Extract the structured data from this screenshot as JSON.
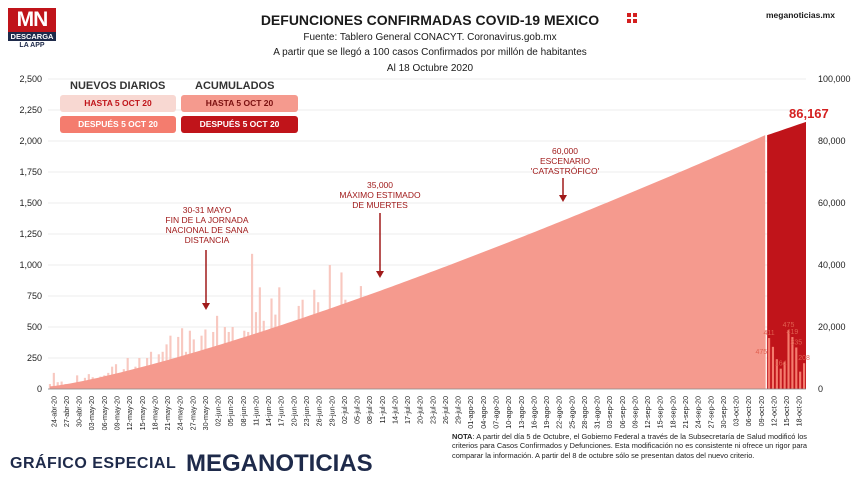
{
  "header": {
    "title": "DEFUNCIONES CONFIRMADAS COVID-19 MEXICO",
    "source": "Fuente: Tablero General CONACYT. Coronavirus.gob.mx",
    "subtitle": "A partir que se llegó a 100 casos Confirmados por millón de habitantes",
    "date": "Al 18 Octubre 2020",
    "site": "meganoticias.mx"
  },
  "logo": {
    "mark": "MN",
    "line1": "DESCARGA",
    "line2": "LA APP"
  },
  "legend": {
    "daily_head": "NUEVOS DIARIOS",
    "cum_head": "ACUMULADOS",
    "daily_before": "HASTA 5 OCT 20",
    "daily_after": "DESPUÉS 5 OCT 20",
    "cum_before": "HASTA 5 OCT 20",
    "cum_after": "DESPUÉS 5 OCT 20"
  },
  "annotations": [
    {
      "text": "30-31 MAYO\nFIN DE LA JORNADA\nNACIONAL DE SANA\nDISTANCIA"
    },
    {
      "text": "35,000\nMÁXIMO ESTIMADO\nDE MUERTES"
    },
    {
      "text": "60,000\nESCENARIO\n'CATASTRÓFICO'"
    }
  ],
  "footer": {
    "label": "GRÁFICO ESPECIAL",
    "brand": "MEGANOTICIAS"
  },
  "note": {
    "bold": "NOTA",
    "text": ": A partir del día 5 de Octubre, el Gobierno Federal a través de la Subsecretaría de Salud modificó los criterios para Casos Confirmados y Defunciones. Esta modificación no es consistente ni ofrece un rigor para comparar la información. A partir del 8 de octubre sólo se presentan datos del nuevo criterio."
  },
  "colors": {
    "daily_before": "#f8c8c0",
    "daily_after": "#f47c6e",
    "cum_before": "#f59a8e",
    "cum_after": "#c0141a",
    "brand": "#c0141a",
    "navy": "#1e2a4a"
  },
  "chart_data": {
    "type": "bar",
    "title": "DEFUNCIONES CONFIRMADAS COVID-19 MEXICO",
    "xlabel": "",
    "ylabel": "",
    "ylim": [
      0,
      2500
    ],
    "y2lim": [
      0,
      100000
    ],
    "y_ticks": [
      "0",
      "250",
      "500",
      "750",
      "1,000",
      "1,250",
      "1,500",
      "1,750",
      "2,000",
      "2,250",
      "2,500"
    ],
    "y2_ticks": [
      "0",
      "20,000",
      "40,000",
      "60,000",
      "80,000",
      "100,000"
    ],
    "x_tick_labels": [
      "24-abr-20",
      "27-abr-20",
      "30-abr-20",
      "03-may-20",
      "06-may-20",
      "09-may-20",
      "12-may-20",
      "15-may-20",
      "18-may-20",
      "21-may-20",
      "24-may-20",
      "27-may-20",
      "30-may-20",
      "02-jun-20",
      "05-jun-20",
      "08-jun-20",
      "11-jun-20",
      "14-jun-20",
      "17-jun-20",
      "20-jun-20",
      "23-jun-20",
      "26-jun-20",
      "29-jun-20",
      "02-jul-20",
      "05-jul-20",
      "08-jul-20",
      "11-jul-20",
      "14-jul-20",
      "17-jul-20",
      "20-jul-20",
      "23-jul-20",
      "26-jul-20",
      "29-jul-20",
      "01-ago-20",
      "04-ago-20",
      "07-ago-20",
      "10-ago-20",
      "13-ago-20",
      "16-ago-20",
      "19-ago-20",
      "22-ago-20",
      "25-ago-20",
      "28-ago-20",
      "31-ago-20",
      "03-sep-20",
      "06-sep-20",
      "09-sep-20",
      "12-sep-20",
      "15-sep-20",
      "18-sep-20",
      "21-sep-20",
      "24-sep-20",
      "27-sep-20",
      "30-sep-20",
      "03-oct-20",
      "06-oct-20",
      "09-oct-20",
      "12-oct-20",
      "15-oct-20",
      "18-oct-20"
    ],
    "series": [
      {
        "name": "NUEVOS DIARIOS HASTA 5 OCT 20",
        "axis": "left",
        "values": [
          40,
          130,
          55,
          60,
          40,
          35,
          30,
          110,
          40,
          90,
          120,
          95,
          80,
          100,
          110,
          130,
          180,
          200,
          130,
          160,
          250,
          110,
          180,
          250,
          120,
          250,
          300,
          150,
          280,
          300,
          360,
          430,
          160,
          420,
          490,
          300,
          470,
          400,
          190,
          430,
          480,
          270,
          460,
          590,
          350,
          500,
          460,
          500,
          290,
          360,
          470,
          460,
          1090,
          620,
          820,
          550,
          470,
          730,
          600,
          820,
          440,
          390,
          470,
          480,
          670,
          720,
          330,
          500,
          800,
          700,
          560,
          450,
          1000,
          550,
          480,
          940,
          720,
          500,
          330,
          630,
          830,
          700,
          660,
          330,
          440,
          580,
          590,
          520,
          670,
          550,
          600,
          810,
          350,
          550,
          690,
          860,
          480,
          610,
          550,
          920,
          780,
          560,
          740,
          680,
          320,
          710,
          810,
          870,
          690,
          700,
          620,
          580,
          780,
          700,
          860,
          780,
          430,
          660,
          700,
          770,
          840,
          580,
          310,
          740,
          720,
          680,
          620,
          350,
          340,
          640,
          500,
          620,
          560,
          610,
          290,
          580,
          850,
          760,
          600,
          730,
          560,
          340,
          620,
          800,
          690,
          430,
          510,
          480,
          410,
          230,
          630,
          540,
          520,
          440,
          630,
          530,
          480,
          540,
          470,
          230,
          650,
          560,
          450,
          520,
          520,
          380,
          230,
          520,
          430,
          390,
          420,
          360,
          400,
          180,
          450,
          380,
          440,
          480,
          350,
          330,
          150,
          300,
          290,
          260,
          470
        ]
      },
      {
        "name": "NUEVOS DIARIOS DESPUÉS 5 OCT 20",
        "axis": "left",
        "values": [
          411,
          340,
          240,
          164,
          220,
          475,
          419,
          335,
          140,
          208
        ]
      },
      {
        "name": "ACUMULADOS HASTA 5 OCT 20",
        "axis": "right",
        "values_start": 857,
        "values_end": 81877
      },
      {
        "name": "ACUMULADOS DESPUÉS 5 OCT 20",
        "axis": "right",
        "values_end": 86167
      }
    ],
    "data_labels": [
      "475",
      "411",
      "164",
      "475",
      "419",
      "335",
      "208",
      "86,167"
    ],
    "grid": true,
    "legend_placement": "top-left"
  }
}
